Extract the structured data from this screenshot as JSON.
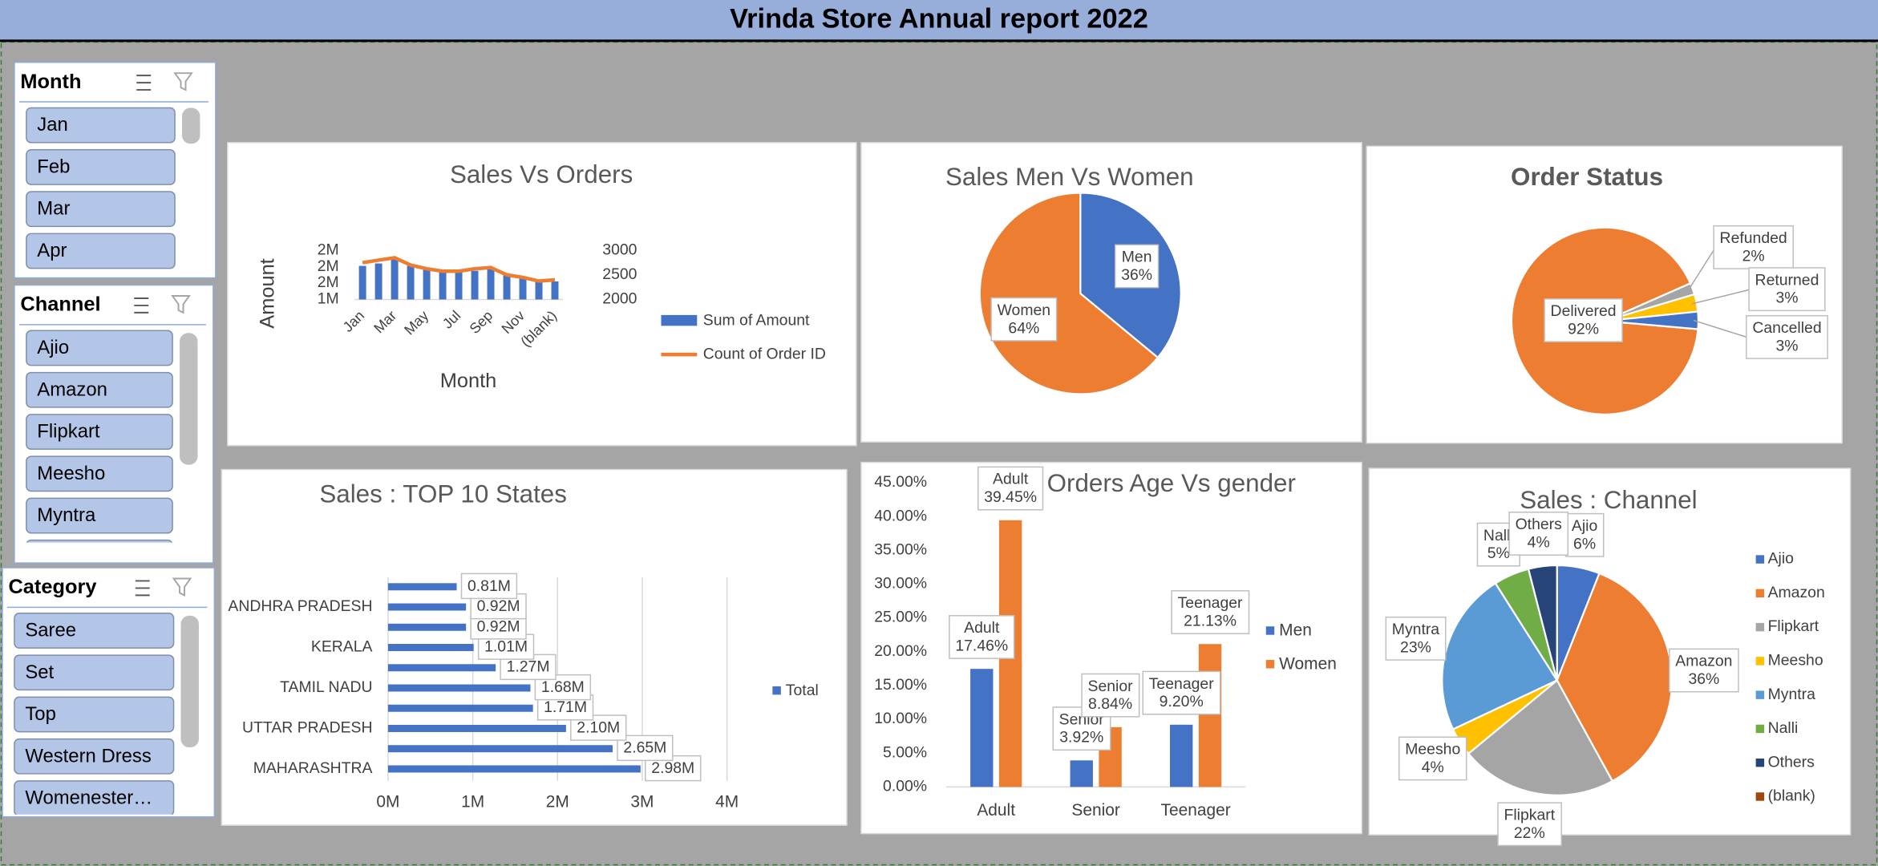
{
  "title": "Vrinda Store Annual report 2022",
  "slicers": [
    {
      "title": "Month",
      "items": [
        "Jan",
        "Feb",
        "Mar",
        "Apr"
      ]
    },
    {
      "title": "Channel",
      "items": [
        "Ajio",
        "Amazon",
        "Flipkart",
        "Meesho",
        "Myntra",
        "Nalli"
      ]
    },
    {
      "title": "Category",
      "items": [
        "Saree",
        "Set",
        "Top",
        "Western Dress",
        "Womenester…"
      ]
    }
  ],
  "chart_data": [
    {
      "type": "combo",
      "title": "Sales Vs Orders",
      "categories": [
        "Jan",
        null,
        "Mar",
        null,
        "May",
        null,
        "Jul",
        null,
        "Sep",
        null,
        "Nov",
        null,
        "(blank)"
      ],
      "series": [
        {
          "name": "Sum of Amount",
          "type": "bar",
          "color": "#4472c4",
          "values": [
            1810000,
            1840000,
            1900000,
            1810000,
            1780000,
            1750000,
            1750000,
            1750000,
            1780000,
            1710000,
            1680000,
            1630000,
            1620000
          ]
        },
        {
          "name": "Count of Order ID",
          "type": "line",
          "axis": "y2",
          "color": "#ed7d31",
          "values": [
            2750,
            2800,
            2850,
            2700,
            2625,
            2575,
            2575,
            2625,
            2650,
            2500,
            2450,
            2375,
            2400
          ]
        }
      ],
      "ylim": [
        1400000,
        2000000
      ],
      "yticks": [
        {
          "value": 1400000,
          "label": "1M"
        },
        {
          "value": 1600000,
          "label": "2M"
        },
        {
          "value": 1800000,
          "label": "2M"
        },
        {
          "value": 2000000,
          "label": "2M"
        }
      ],
      "y2lim": [
        2000,
        3000
      ],
      "y2ticks": [
        2000,
        2500,
        3000
      ],
      "ylabel": "Amount",
      "xlabel": "Month",
      "legend": "right"
    },
    {
      "type": "pie",
      "title": "Sales Men Vs Women",
      "categories": [
        "Men",
        "Women"
      ],
      "values": [
        36,
        64
      ],
      "value_labels": [
        "36%",
        "64%"
      ],
      "colors": [
        "#4472c4",
        "#ed7d31"
      ]
    },
    {
      "type": "pie",
      "title": "Order Status",
      "categories": [
        "Delivered",
        "Refunded",
        "Returned",
        "Cancelled"
      ],
      "values": [
        92,
        2,
        3,
        3
      ],
      "value_labels": [
        "92%",
        "2%",
        "3%",
        "3%"
      ],
      "colors": [
        "#ed7d31",
        "#a5a5a5",
        "#ffc000",
        "#4472c4"
      ]
    },
    {
      "type": "barh",
      "title": "Sales : TOP 10 States",
      "categories": [
        "MAHARASHTRA",
        null,
        "UTTAR PRADESH",
        null,
        "TAMIL NADU",
        null,
        "KERALA",
        null,
        "ANDHRA PRADESH",
        null
      ],
      "series": [
        {
          "name": "Total",
          "color": "#4472c4",
          "values": [
            2980000,
            2650000,
            2100000,
            1710000,
            1680000,
            1270000,
            1010000,
            920000,
            920000,
            810000
          ],
          "value_labels": [
            "2.98M",
            "2.65M",
            "2.10M",
            "1.71M",
            "1.68M",
            "1.27M",
            "1.01M",
            "0.92M",
            "0.92M",
            "0.81M"
          ]
        }
      ],
      "xlim": [
        0,
        4000000
      ],
      "xticks": [
        {
          "value": 0,
          "label": "0M"
        },
        {
          "value": 1000000,
          "label": "1M"
        },
        {
          "value": 2000000,
          "label": "2M"
        },
        {
          "value": 3000000,
          "label": "3M"
        },
        {
          "value": 4000000,
          "label": "4M"
        }
      ],
      "grid": true,
      "legend": "right"
    },
    {
      "type": "bar",
      "title": "Orders Age Vs gender",
      "categories": [
        "Adult",
        "Senior",
        "Teenager"
      ],
      "series": [
        {
          "name": "Men",
          "color": "#4472c4",
          "values": [
            17.46,
            3.92,
            9.2
          ],
          "value_labels": [
            "17.46%",
            "3.92%",
            "9.20%"
          ]
        },
        {
          "name": "Women",
          "color": "#ed7d31",
          "values": [
            39.45,
            8.84,
            21.13
          ],
          "value_labels": [
            "39.45%",
            "8.84%",
            "21.13%"
          ]
        }
      ],
      "ylim": [
        0,
        45
      ],
      "yticks": [
        {
          "value": 0,
          "label": "0.00%"
        },
        {
          "value": 5,
          "label": "5.00%"
        },
        {
          "value": 10,
          "label": "10.00%"
        },
        {
          "value": 15,
          "label": "15.00%"
        },
        {
          "value": 20,
          "label": "20.00%"
        },
        {
          "value": 25,
          "label": "25.00%"
        },
        {
          "value": 30,
          "label": "30.00%"
        },
        {
          "value": 35,
          "label": "35.00%"
        },
        {
          "value": 40,
          "label": "40.00%"
        },
        {
          "value": 45,
          "label": "45.00%"
        }
      ],
      "legend": "right"
    },
    {
      "type": "pie",
      "title": "Sales : Channel",
      "categories": [
        "Ajio",
        "Amazon",
        "Flipkart",
        "Meesho",
        "Myntra",
        "Nalli",
        "Others",
        "(blank)"
      ],
      "values": [
        6,
        36,
        22,
        4,
        23,
        5,
        4,
        0
      ],
      "value_labels": [
        "6%",
        "36%",
        "22%",
        "4%",
        "23%",
        "5%",
        "4%",
        null
      ],
      "colors": [
        "#4472c4",
        "#ed7d31",
        "#a5a5a5",
        "#ffc000",
        "#5b9bd5",
        "#70ad47",
        "#264478",
        "#9e480e"
      ],
      "legend": "right"
    }
  ]
}
